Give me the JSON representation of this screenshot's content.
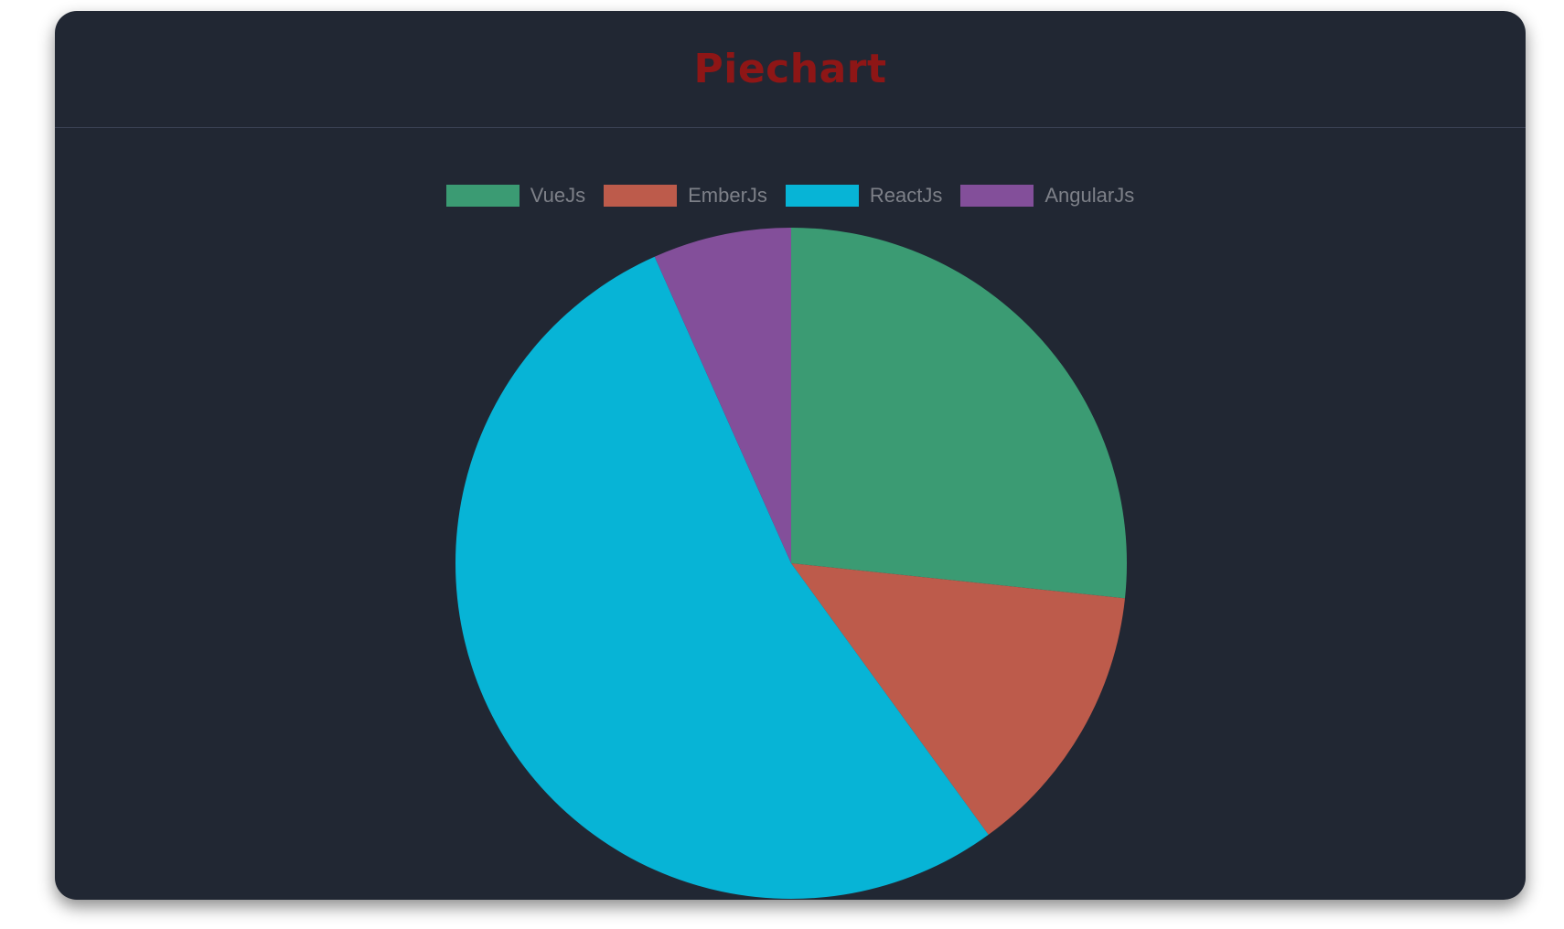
{
  "header": {
    "title": "Piechart"
  },
  "chart_data": {
    "type": "pie",
    "title": "Piechart",
    "categories": [
      "VueJs",
      "EmberJs",
      "ReactJs",
      "AngularJs"
    ],
    "values": [
      40,
      20,
      80,
      10
    ],
    "colors": [
      "#3b9b73",
      "#bd5b4b",
      "#07b4d6",
      "#834f9a"
    ],
    "legend": "top",
    "start_angle": "top, clockwise"
  }
}
